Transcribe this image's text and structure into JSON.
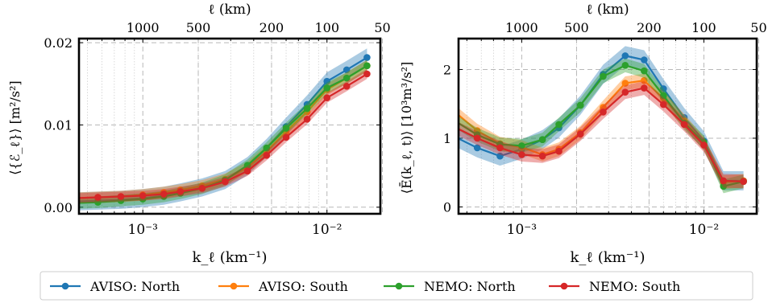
{
  "colors": {
    "aviso_north": "#1f77b4",
    "aviso_south": "#ff7f0e",
    "nemo_north": "#2ca02c",
    "nemo_south": "#d62728"
  },
  "legend": {
    "position": "bottom-center",
    "entries": [
      "AVISO: North",
      "AVISO: South",
      "NEMO: North",
      "NEMO: South"
    ]
  },
  "chart_data": [
    {
      "type": "line",
      "xscale": "log",
      "xlabel": "k_ℓ (km⁻¹)",
      "xlim": [
        0.00045,
        0.0195
      ],
      "xticks": [
        {
          "value": 0.001,
          "label": "10⁻³"
        },
        {
          "value": 0.01,
          "label": "10⁻²"
        }
      ],
      "top_axis_label": "ℓ (km)",
      "top_ticks": [
        {
          "value": 0.001,
          "label": "1000"
        },
        {
          "value": 0.002,
          "label": "500"
        },
        {
          "value": 0.005,
          "label": "200"
        },
        {
          "value": 0.01,
          "label": "100"
        },
        {
          "value": 0.02,
          "label": "50"
        }
      ],
      "ylabel": "⟨{ℰ_ℓ}⟩ [m²/s²]",
      "ylim": [
        -0.0008,
        0.0205
      ],
      "yticks": [
        {
          "value": 0.0,
          "label": "0.00"
        },
        {
          "value": 0.01,
          "label": "0.01"
        },
        {
          "value": 0.02,
          "label": "0.02"
        }
      ],
      "grid": true,
      "x": [
        0.00043,
        0.00057,
        0.00076,
        0.001,
        0.0013,
        0.0016,
        0.0021,
        0.0028,
        0.0037,
        0.0047,
        0.006,
        0.0078,
        0.01,
        0.0128,
        0.0165
      ],
      "series": [
        {
          "name": "AVISO: North",
          "color_key": "aviso_north",
          "values": [
            0.0007,
            0.0008,
            0.0009,
            0.0011,
            0.0014,
            0.0018,
            0.0024,
            0.0033,
            0.005,
            0.0072,
            0.0098,
            0.0125,
            0.0153,
            0.0167,
            0.0182
          ],
          "band": 0.0011
        },
        {
          "name": "AVISO: South",
          "color_key": "aviso_south",
          "values": [
            0.0011,
            0.0012,
            0.0013,
            0.0015,
            0.0018,
            0.0021,
            0.0026,
            0.0034,
            0.0048,
            0.0068,
            0.0092,
            0.0116,
            0.0143,
            0.0157,
            0.0172
          ],
          "band": 0.0007
        },
        {
          "name": "NEMO: North",
          "color_key": "nemo_north",
          "values": [
            0.0005,
            0.0006,
            0.0008,
            0.001,
            0.0013,
            0.0017,
            0.0023,
            0.0033,
            0.0051,
            0.0072,
            0.0096,
            0.012,
            0.0145,
            0.0157,
            0.0172
          ],
          "band": 0.0007
        },
        {
          "name": "NEMO: South",
          "color_key": "nemo_south",
          "values": [
            0.0011,
            0.0012,
            0.0013,
            0.0014,
            0.0016,
            0.0019,
            0.0023,
            0.0031,
            0.0044,
            0.0063,
            0.0085,
            0.0107,
            0.0133,
            0.0147,
            0.0162
          ],
          "band": 0.0006
        }
      ]
    },
    {
      "type": "line",
      "xscale": "log",
      "xlabel": "k_ℓ (km⁻¹)",
      "xlim": [
        0.00045,
        0.0195
      ],
      "xticks": [
        {
          "value": 0.001,
          "label": "10⁻³"
        },
        {
          "value": 0.01,
          "label": "10⁻²"
        }
      ],
      "top_axis_label": "ℓ (km)",
      "top_ticks": [
        {
          "value": 0.001,
          "label": "1000"
        },
        {
          "value": 0.002,
          "label": "500"
        },
        {
          "value": 0.005,
          "label": "200"
        },
        {
          "value": 0.01,
          "label": "100"
        },
        {
          "value": 0.02,
          "label": "50"
        }
      ],
      "ylabel": "⟨Ē(k_ℓ, t)⟩ [10³m³/s²]",
      "ylim": [
        -0.1,
        2.45
      ],
      "yticks": [
        {
          "value": 0,
          "label": "0"
        },
        {
          "value": 1,
          "label": "1"
        },
        {
          "value": 2,
          "label": "2"
        }
      ],
      "grid": true,
      "x": [
        0.00043,
        0.00057,
        0.00076,
        0.001,
        0.0013,
        0.0016,
        0.0021,
        0.0028,
        0.0037,
        0.0047,
        0.006,
        0.0078,
        0.01,
        0.0128,
        0.0165
      ],
      "series": [
        {
          "name": "AVISO: North",
          "color_key": "aviso_north",
          "values": [
            1.02,
            0.86,
            0.74,
            0.84,
            0.98,
            1.15,
            1.48,
            1.93,
            2.2,
            2.14,
            1.72,
            1.3,
            0.96,
            0.38,
            0.38
          ],
          "band": 0.14
        },
        {
          "name": "AVISO: South",
          "color_key": "aviso_south",
          "values": [
            1.38,
            1.11,
            0.92,
            0.87,
            0.76,
            0.84,
            1.08,
            1.45,
            1.8,
            1.84,
            1.58,
            1.25,
            0.92,
            0.36,
            0.38
          ],
          "band": 0.1
        },
        {
          "name": "NEMO: North",
          "color_key": "nemo_north",
          "values": [
            1.25,
            1.05,
            0.91,
            0.89,
            0.98,
            1.2,
            1.48,
            1.9,
            2.06,
            1.98,
            1.62,
            1.22,
            0.94,
            0.3,
            0.37
          ],
          "band": 0.1
        },
        {
          "name": "NEMO: South",
          "color_key": "nemo_south",
          "values": [
            1.16,
            1.0,
            0.86,
            0.76,
            0.74,
            0.81,
            1.06,
            1.38,
            1.67,
            1.73,
            1.49,
            1.2,
            0.9,
            0.38,
            0.37
          ],
          "band": 0.1
        }
      ]
    }
  ]
}
